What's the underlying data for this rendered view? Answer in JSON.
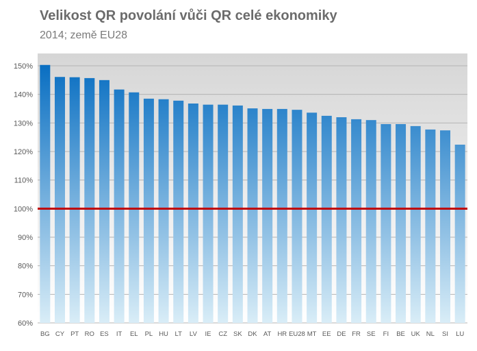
{
  "chart_data": {
    "type": "bar",
    "title": "Velikost QR povolání vůči QR celé ekonomiky",
    "subtitle": "2014; země EU28",
    "xlabel": "",
    "ylabel": "",
    "ylim": [
      0.6,
      1.5
    ],
    "y_ticks": [
      0.6,
      0.7,
      0.8,
      0.9,
      1.0,
      1.1,
      1.2,
      1.3,
      1.4,
      1.5
    ],
    "y_tick_labels": [
      "60%",
      "70%",
      "80%",
      "90%",
      "100%",
      "110%",
      "120%",
      "130%",
      "140%",
      "150%"
    ],
    "categories": [
      "BG",
      "CY",
      "PT",
      "RO",
      "ES",
      "IT",
      "EL",
      "PL",
      "HU",
      "LT",
      "LV",
      "IE",
      "CZ",
      "SK",
      "DK",
      "AT",
      "HR",
      "EU28",
      "MT",
      "EE",
      "DE",
      "FR",
      "SE",
      "FI",
      "BE",
      "UK",
      "NL",
      "SI",
      "LU"
    ],
    "values": [
      1.503,
      1.461,
      1.46,
      1.457,
      1.45,
      1.417,
      1.407,
      1.385,
      1.383,
      1.378,
      1.368,
      1.364,
      1.364,
      1.361,
      1.351,
      1.349,
      1.349,
      1.346,
      1.336,
      1.325,
      1.32,
      1.313,
      1.31,
      1.296,
      1.296,
      1.289,
      1.277,
      1.274,
      1.224
    ],
    "reference_line": 1.0,
    "grid": true,
    "legend": "none",
    "colors": {
      "bar_top": "#0a6fc2",
      "bar_bottom": "#d9edf7",
      "reference_line": "#c00000",
      "plot_background_top": "#d6d6d6",
      "plot_background_bottom": "#ffffff",
      "gridline": "#b3b3b3"
    }
  }
}
